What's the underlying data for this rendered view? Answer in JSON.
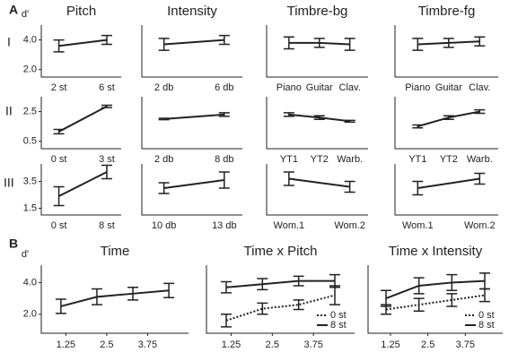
{
  "panel_labels": [
    "A",
    "B"
  ],
  "row_labels": [
    "I",
    "II",
    "III"
  ],
  "chart_data": [
    {
      "type": "line",
      "title": "Pitch",
      "ylabel": "d'",
      "categories": [
        "2 st",
        "6 st"
      ],
      "values": [
        3.6,
        4.0
      ],
      "errors": [
        0.4,
        0.3
      ],
      "ylim": [
        1.5,
        5
      ],
      "yticks": [
        {
          "value": 2,
          "label": "2.0"
        },
        {
          "value": 4,
          "label": "4.0"
        }
      ],
      "color": "#222222"
    },
    {
      "type": "line",
      "title": "Intensity",
      "categories": [
        "2 db",
        "6 db"
      ],
      "values": [
        3.7,
        4.0
      ],
      "errors": [
        0.4,
        0.3
      ],
      "ylim": [
        1.5,
        5
      ],
      "color": "#222222"
    },
    {
      "type": "line",
      "title": "Timbre-bg",
      "categories": [
        "Piano",
        "Guitar",
        "Clav."
      ],
      "values": [
        3.8,
        3.8,
        3.7
      ],
      "errors": [
        0.4,
        0.3,
        0.4
      ],
      "ylim": [
        1.5,
        5
      ],
      "color": "#222222"
    },
    {
      "type": "line",
      "title": "Timbre-fg",
      "categories": [
        "Piano",
        "Guitar",
        "Clav."
      ],
      "values": [
        3.7,
        3.8,
        3.9
      ],
      "errors": [
        0.4,
        0.3,
        0.3
      ],
      "ylim": [
        1.5,
        5
      ],
      "color": "#222222"
    },
    {
      "type": "line",
      "categories": [
        "0 st",
        "3 st"
      ],
      "values": [
        1.15,
        2.85
      ],
      "errors": [
        0.15,
        0.08
      ],
      "ylim": [
        0,
        3.5
      ],
      "yticks": [
        0.5,
        2.5
      ],
      "color": "#222222"
    },
    {
      "type": "line",
      "categories": [
        "2 db",
        "8 db"
      ],
      "values": [
        2.0,
        2.3
      ],
      "errors": [
        0.05,
        0.12
      ],
      "ylim": [
        0,
        3.5
      ],
      "color": "#222222"
    },
    {
      "type": "line",
      "categories": [
        "YT1",
        "YT2",
        "Warb."
      ],
      "values": [
        2.3,
        2.1,
        1.85
      ],
      "errors": [
        0.12,
        0.12,
        0.06
      ],
      "ylim": [
        0,
        3.5
      ],
      "color": "#222222"
    },
    {
      "type": "line",
      "categories": [
        "YT1",
        "YT2",
        "Warb."
      ],
      "values": [
        1.5,
        2.1,
        2.5
      ],
      "errors": [
        0.1,
        0.12,
        0.12
      ],
      "ylim": [
        0,
        3.5
      ],
      "color": "#222222"
    },
    {
      "type": "line",
      "categories": [
        "0 st",
        "8 st"
      ],
      "values": [
        2.4,
        4.2
      ],
      "errors": [
        0.7,
        0.5
      ],
      "ylim": [
        1,
        4.8
      ],
      "yticks": [
        1.5,
        3.5
      ],
      "color": "#222222"
    },
    {
      "type": "line",
      "categories": [
        "10 db",
        "13 db"
      ],
      "values": [
        3.0,
        3.6
      ],
      "errors": [
        0.4,
        0.6
      ],
      "ylim": [
        1,
        4.8
      ],
      "color": "#222222"
    },
    {
      "type": "line",
      "categories": [
        "Wom.1",
        "Wom.2"
      ],
      "values": [
        3.7,
        3.1
      ],
      "errors": [
        0.5,
        0.4
      ],
      "ylim": [
        1,
        4.8
      ],
      "color": "#222222"
    },
    {
      "type": "line",
      "categories": [
        "Wom.1",
        "Wom.2"
      ],
      "values": [
        3.0,
        3.7
      ],
      "errors": [
        0.5,
        0.4
      ],
      "ylim": [
        1,
        4.8
      ],
      "color": "#222222"
    },
    {
      "type": "line",
      "title": "Time",
      "ylabel": "d'",
      "x": [
        1.1,
        2.2,
        3.3,
        4.4
      ],
      "values": [
        2.5,
        3.1,
        3.3,
        3.5
      ],
      "errors": [
        0.45,
        0.5,
        0.4,
        0.45
      ],
      "xlim": [
        0.5,
        5
      ],
      "xticks": [
        1.25,
        2.5,
        3.75
      ],
      "ylim": [
        0.8,
        5.1
      ],
      "yticks": [
        {
          "value": 2,
          "label": "2.0"
        },
        {
          "value": 4,
          "label": "4.0"
        }
      ],
      "color": "#222222"
    },
    {
      "type": "line",
      "title": "Time x Pitch",
      "x": [
        1.1,
        2.2,
        3.3,
        4.4
      ],
      "xlim": [
        0.5,
        5
      ],
      "xticks": [
        1.25,
        2.5,
        3.75
      ],
      "ylim": [
        0.8,
        5.1
      ],
      "legend": "lower right",
      "series": [
        {
          "name": "0 st",
          "color": "#222222",
          "line_style": "dotted",
          "values": [
            1.6,
            2.35,
            2.6,
            3.2
          ],
          "errors": [
            0.4,
            0.35,
            0.3,
            0.6
          ]
        },
        {
          "name": "8 st",
          "color": "#222222",
          "line_style": "solid",
          "values": [
            3.7,
            3.9,
            4.1,
            4.1
          ],
          "errors": [
            0.35,
            0.35,
            0.3,
            0.4
          ]
        }
      ]
    },
    {
      "type": "line",
      "title": "Time x Intensity",
      "x": [
        1.1,
        2.2,
        3.3,
        4.4
      ],
      "xlim": [
        0.5,
        5
      ],
      "xticks": [
        1.25,
        2.5,
        3.75
      ],
      "ylim": [
        0.8,
        5.1
      ],
      "legend": "lower right",
      "series": [
        {
          "name": "0 st",
          "color": "#222222",
          "line_style": "dotted",
          "values": [
            2.3,
            2.6,
            2.9,
            3.2
          ],
          "errors": [
            0.3,
            0.4,
            0.4,
            0.4
          ]
        },
        {
          "name": "8 st",
          "color": "#222222",
          "line_style": "solid",
          "values": [
            3.0,
            3.8,
            4.0,
            4.1
          ],
          "errors": [
            0.5,
            0.5,
            0.5,
            0.5
          ]
        }
      ]
    }
  ]
}
